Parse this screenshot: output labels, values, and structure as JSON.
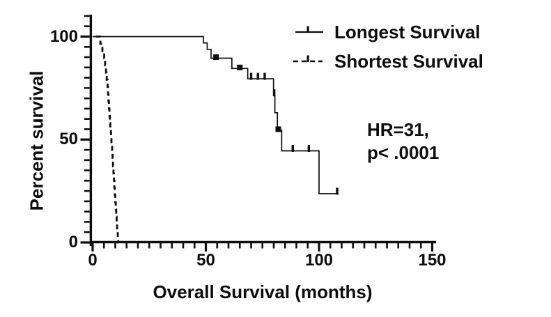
{
  "figure": {
    "background": "#ffffff",
    "ink": "#0d0d0d"
  },
  "chart_data": {
    "type": "line",
    "subtype": "kaplan-meier-step",
    "title": "",
    "xlabel": "Overall Survival (months)",
    "ylabel": "Percent survival",
    "xlim": [
      0,
      150
    ],
    "ylim": [
      0,
      100
    ],
    "grid": false,
    "legend_position": "top-right",
    "x_major_ticks": [
      0,
      50,
      100,
      150
    ],
    "x_minor_ticks": [
      5,
      10,
      15,
      20,
      25,
      30,
      35,
      40,
      45,
      55,
      60,
      65,
      70,
      75,
      80,
      85,
      90,
      95,
      105,
      110,
      115,
      120,
      125,
      130,
      135,
      140,
      145
    ],
    "y_major_ticks": [
      0,
      50,
      100
    ],
    "y_minor_ticks": [
      5,
      10,
      15,
      20,
      25,
      30,
      35,
      40,
      45,
      55,
      60,
      65,
      70,
      75,
      80,
      85,
      90,
      95,
      105,
      110
    ],
    "annotation": {
      "line1": "HR=31,",
      "line2": "p< .0001"
    },
    "series": [
      {
        "name": "Longest Survival",
        "line_style": "solid",
        "steps": [
          [
            0,
            100
          ],
          [
            48.9,
            96.9
          ],
          [
            50.6,
            93.8
          ],
          [
            52.3,
            89.5
          ],
          [
            61.5,
            84.5
          ],
          [
            68.5,
            79.5
          ],
          [
            79.9,
            71.5
          ],
          [
            80.5,
            63
          ],
          [
            81.6,
            54.5
          ],
          [
            83.5,
            44.5
          ],
          [
            100,
            23.7
          ]
        ],
        "end_x": 108.7,
        "censor_marks": [
          [
            54.5,
            89.5,
            "square"
          ],
          [
            65.0,
            84.5,
            "square"
          ],
          [
            70.0,
            79.5,
            "tick"
          ],
          [
            73.0,
            79.5,
            "tick"
          ],
          [
            76.0,
            79.5,
            "tick"
          ],
          [
            80.2,
            71.5,
            "tick"
          ],
          [
            82.0,
            54.5,
            "square"
          ],
          [
            88.4,
            44.5,
            "tick"
          ],
          [
            95.5,
            44.5,
            "tick"
          ],
          [
            108.0,
            23.7,
            "tick"
          ]
        ]
      },
      {
        "name": "Shortest Survival",
        "line_style": "dashed",
        "steps": [
          [
            1.5,
            100
          ],
          [
            3.4,
            96.5
          ],
          [
            4.3,
            93
          ],
          [
            5.1,
            89.5
          ],
          [
            5.5,
            86
          ],
          [
            5.9,
            82.5
          ],
          [
            6.2,
            79
          ],
          [
            6.6,
            75.5
          ],
          [
            6.8,
            72
          ],
          [
            7.0,
            68.5
          ],
          [
            7.2,
            65
          ],
          [
            7.4,
            61.5
          ],
          [
            7.6,
            58
          ],
          [
            7.8,
            54.5
          ],
          [
            8.1,
            51
          ],
          [
            8.3,
            47.5
          ],
          [
            8.6,
            44
          ],
          [
            8.8,
            40.5
          ],
          [
            9.0,
            37
          ],
          [
            9.2,
            33.5
          ],
          [
            9.4,
            30
          ],
          [
            9.6,
            26.5
          ],
          [
            9.8,
            23
          ],
          [
            10.0,
            19.5
          ],
          [
            10.2,
            16
          ],
          [
            10.4,
            12.5
          ],
          [
            10.6,
            9
          ],
          [
            10.8,
            5.5
          ],
          [
            11.1,
            2
          ],
          [
            11.3,
            0
          ]
        ],
        "end_x": 11.4,
        "censor_marks": []
      }
    ]
  }
}
